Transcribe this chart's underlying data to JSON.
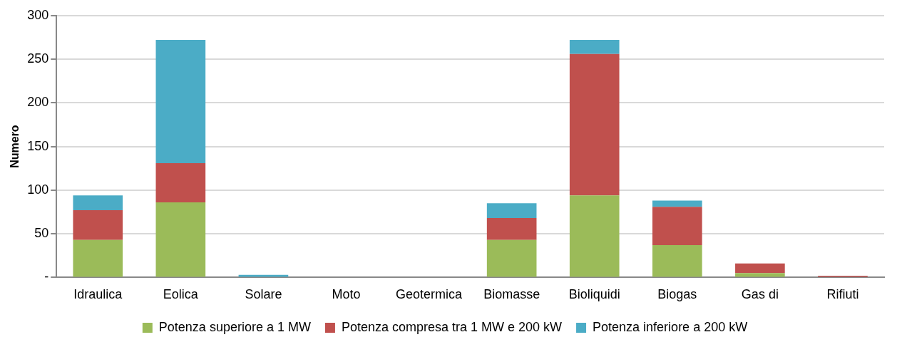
{
  "chart_data": {
    "type": "bar",
    "stacked": true,
    "ylabel": "Numero",
    "categories": [
      "Idraulica",
      "Eolica",
      "Solare",
      "Moto",
      "Geotermica",
      "Biomasse",
      "Bioliquidi",
      "Biogas",
      "Gas di",
      "Rifiuti"
    ],
    "series": [
      {
        "name": "Potenza superiore a 1 MW",
        "color": "#9bbb59",
        "values": [
          43,
          86,
          0,
          0,
          0,
          43,
          94,
          37,
          5,
          0
        ]
      },
      {
        "name": "Potenza compresa tra 1 MW e 200 kW",
        "color": "#c0504d",
        "values": [
          34,
          45,
          0,
          0,
          0,
          25,
          162,
          44,
          11,
          2
        ]
      },
      {
        "name": "Potenza inferiore a 200 kW",
        "color": "#4bacc6",
        "values": [
          17,
          141,
          3,
          0,
          0,
          17,
          16,
          7,
          0,
          0
        ]
      }
    ],
    "ylim": [
      0,
      300
    ],
    "yticks": [
      {
        "value": 0,
        "label": "-"
      },
      50,
      100,
      150,
      200,
      250,
      300
    ],
    "grid": "y",
    "legend": "bottom"
  }
}
